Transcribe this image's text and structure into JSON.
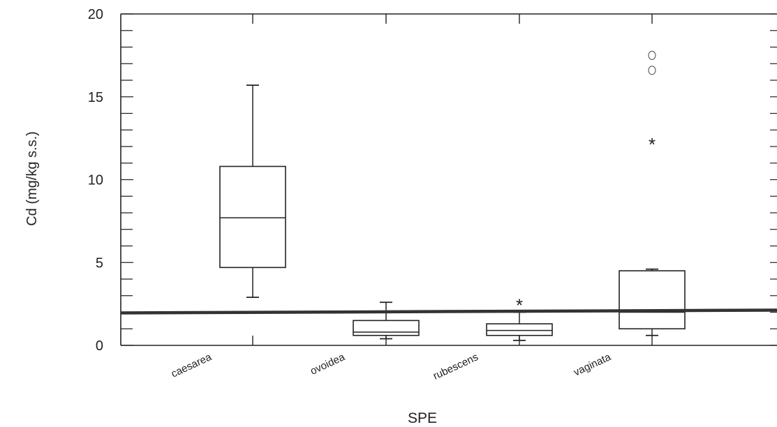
{
  "chart_data": {
    "type": "box",
    "xlabel": "SPE",
    "ylabel": "Cd (mg/kg s.s.)",
    "ylim": [
      0,
      20
    ],
    "yticks": [
      0,
      5,
      10,
      15,
      20
    ],
    "categories": [
      "caesarea",
      "ovoidea",
      "rubescens",
      "vaginata"
    ],
    "boxes": [
      {
        "category": "caesarea",
        "whisker_low": 2.9,
        "q1": 4.7,
        "median": 7.7,
        "q3": 10.8,
        "whisker_high": 15.7,
        "outliers_star": [],
        "outliers_circle": []
      },
      {
        "category": "ovoidea",
        "whisker_low": 0.4,
        "q1": 0.6,
        "median": 0.8,
        "q3": 1.5,
        "whisker_high": 2.6,
        "outliers_star": [],
        "outliers_circle": []
      },
      {
        "category": "rubescens",
        "whisker_low": 0.3,
        "q1": 0.6,
        "median": 0.9,
        "q3": 1.3,
        "whisker_high": 2.0,
        "outliers_star": [
          2.6
        ],
        "outliers_circle": []
      },
      {
        "category": "vaginata",
        "whisker_low": 0.6,
        "q1": 1.0,
        "median": 2.0,
        "q3": 4.5,
        "whisker_high": 4.6,
        "outliers_star": [
          12.3
        ],
        "outliers_circle": [
          16.6,
          17.5
        ]
      }
    ],
    "reference_line": {
      "value": 2.0,
      "color": "#333333"
    },
    "grid": false,
    "colors": {
      "box": "#222222",
      "axis": "#222222"
    }
  }
}
